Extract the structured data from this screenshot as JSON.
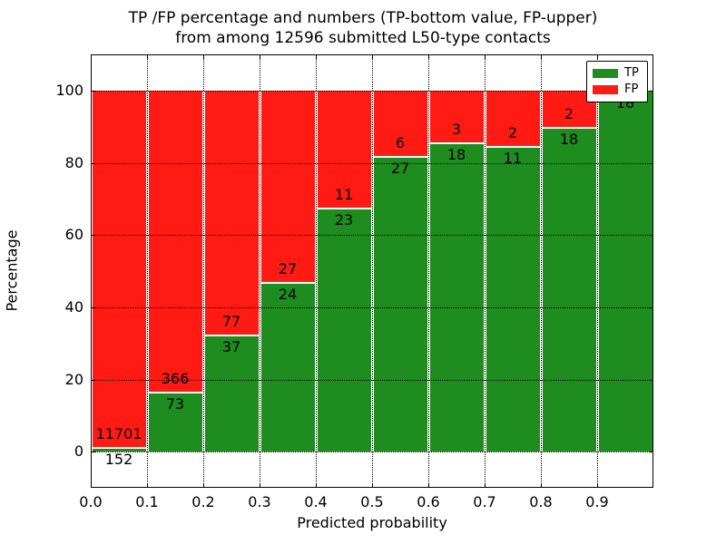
{
  "title": {
    "line1": "TP /FP percentage and numbers (TP-bottom value, FP-upper)",
    "line2": "from among 12596 submitted L50-type contacts"
  },
  "chart_data": {
    "type": "bar",
    "stacked": true,
    "title": "TP /FP percentage and numbers (TP-bottom value, FP-upper) from among 12596 submitted L50-type contacts",
    "xlabel": "Predicted probability",
    "ylabel": "Percentage",
    "total_submitted": 12596,
    "xlim": [
      0.0,
      1.0
    ],
    "ylim": [
      -10,
      110
    ],
    "x_tick_labels": [
      "0.0",
      "0.1",
      "0.2",
      "0.3",
      "0.4",
      "0.5",
      "0.6",
      "0.7",
      "0.8",
      "0.9"
    ],
    "y_tick_values": [
      0,
      20,
      40,
      60,
      80,
      100
    ],
    "grid": "dotted",
    "legend": {
      "position": "upper-right",
      "entries": [
        {
          "label": "TP",
          "color": "#1e8c1e"
        },
        {
          "label": "FP",
          "color": "#ff1a13"
        }
      ]
    },
    "bins": [
      {
        "x_start": 0.0,
        "x_end": 0.1,
        "tp": 152,
        "fp": 11701
      },
      {
        "x_start": 0.1,
        "x_end": 0.2,
        "tp": 73,
        "fp": 366
      },
      {
        "x_start": 0.2,
        "x_end": 0.3,
        "tp": 37,
        "fp": 77
      },
      {
        "x_start": 0.3,
        "x_end": 0.4,
        "tp": 24,
        "fp": 27
      },
      {
        "x_start": 0.4,
        "x_end": 0.5,
        "tp": 23,
        "fp": 11
      },
      {
        "x_start": 0.5,
        "x_end": 0.6,
        "tp": 27,
        "fp": 6
      },
      {
        "x_start": 0.6,
        "x_end": 0.7,
        "tp": 18,
        "fp": 3
      },
      {
        "x_start": 0.7,
        "x_end": 0.8,
        "tp": 11,
        "fp": 2
      },
      {
        "x_start": 0.8,
        "x_end": 0.9,
        "tp": 18,
        "fp": 2
      },
      {
        "x_start": 0.9,
        "x_end": 1.0,
        "tp": 18,
        "fp": 0
      }
    ]
  },
  "colors": {
    "tp_green": "#1e8c1e",
    "fp_red": "#ff1a13",
    "background": "#ffffff",
    "grid": "#000000"
  }
}
